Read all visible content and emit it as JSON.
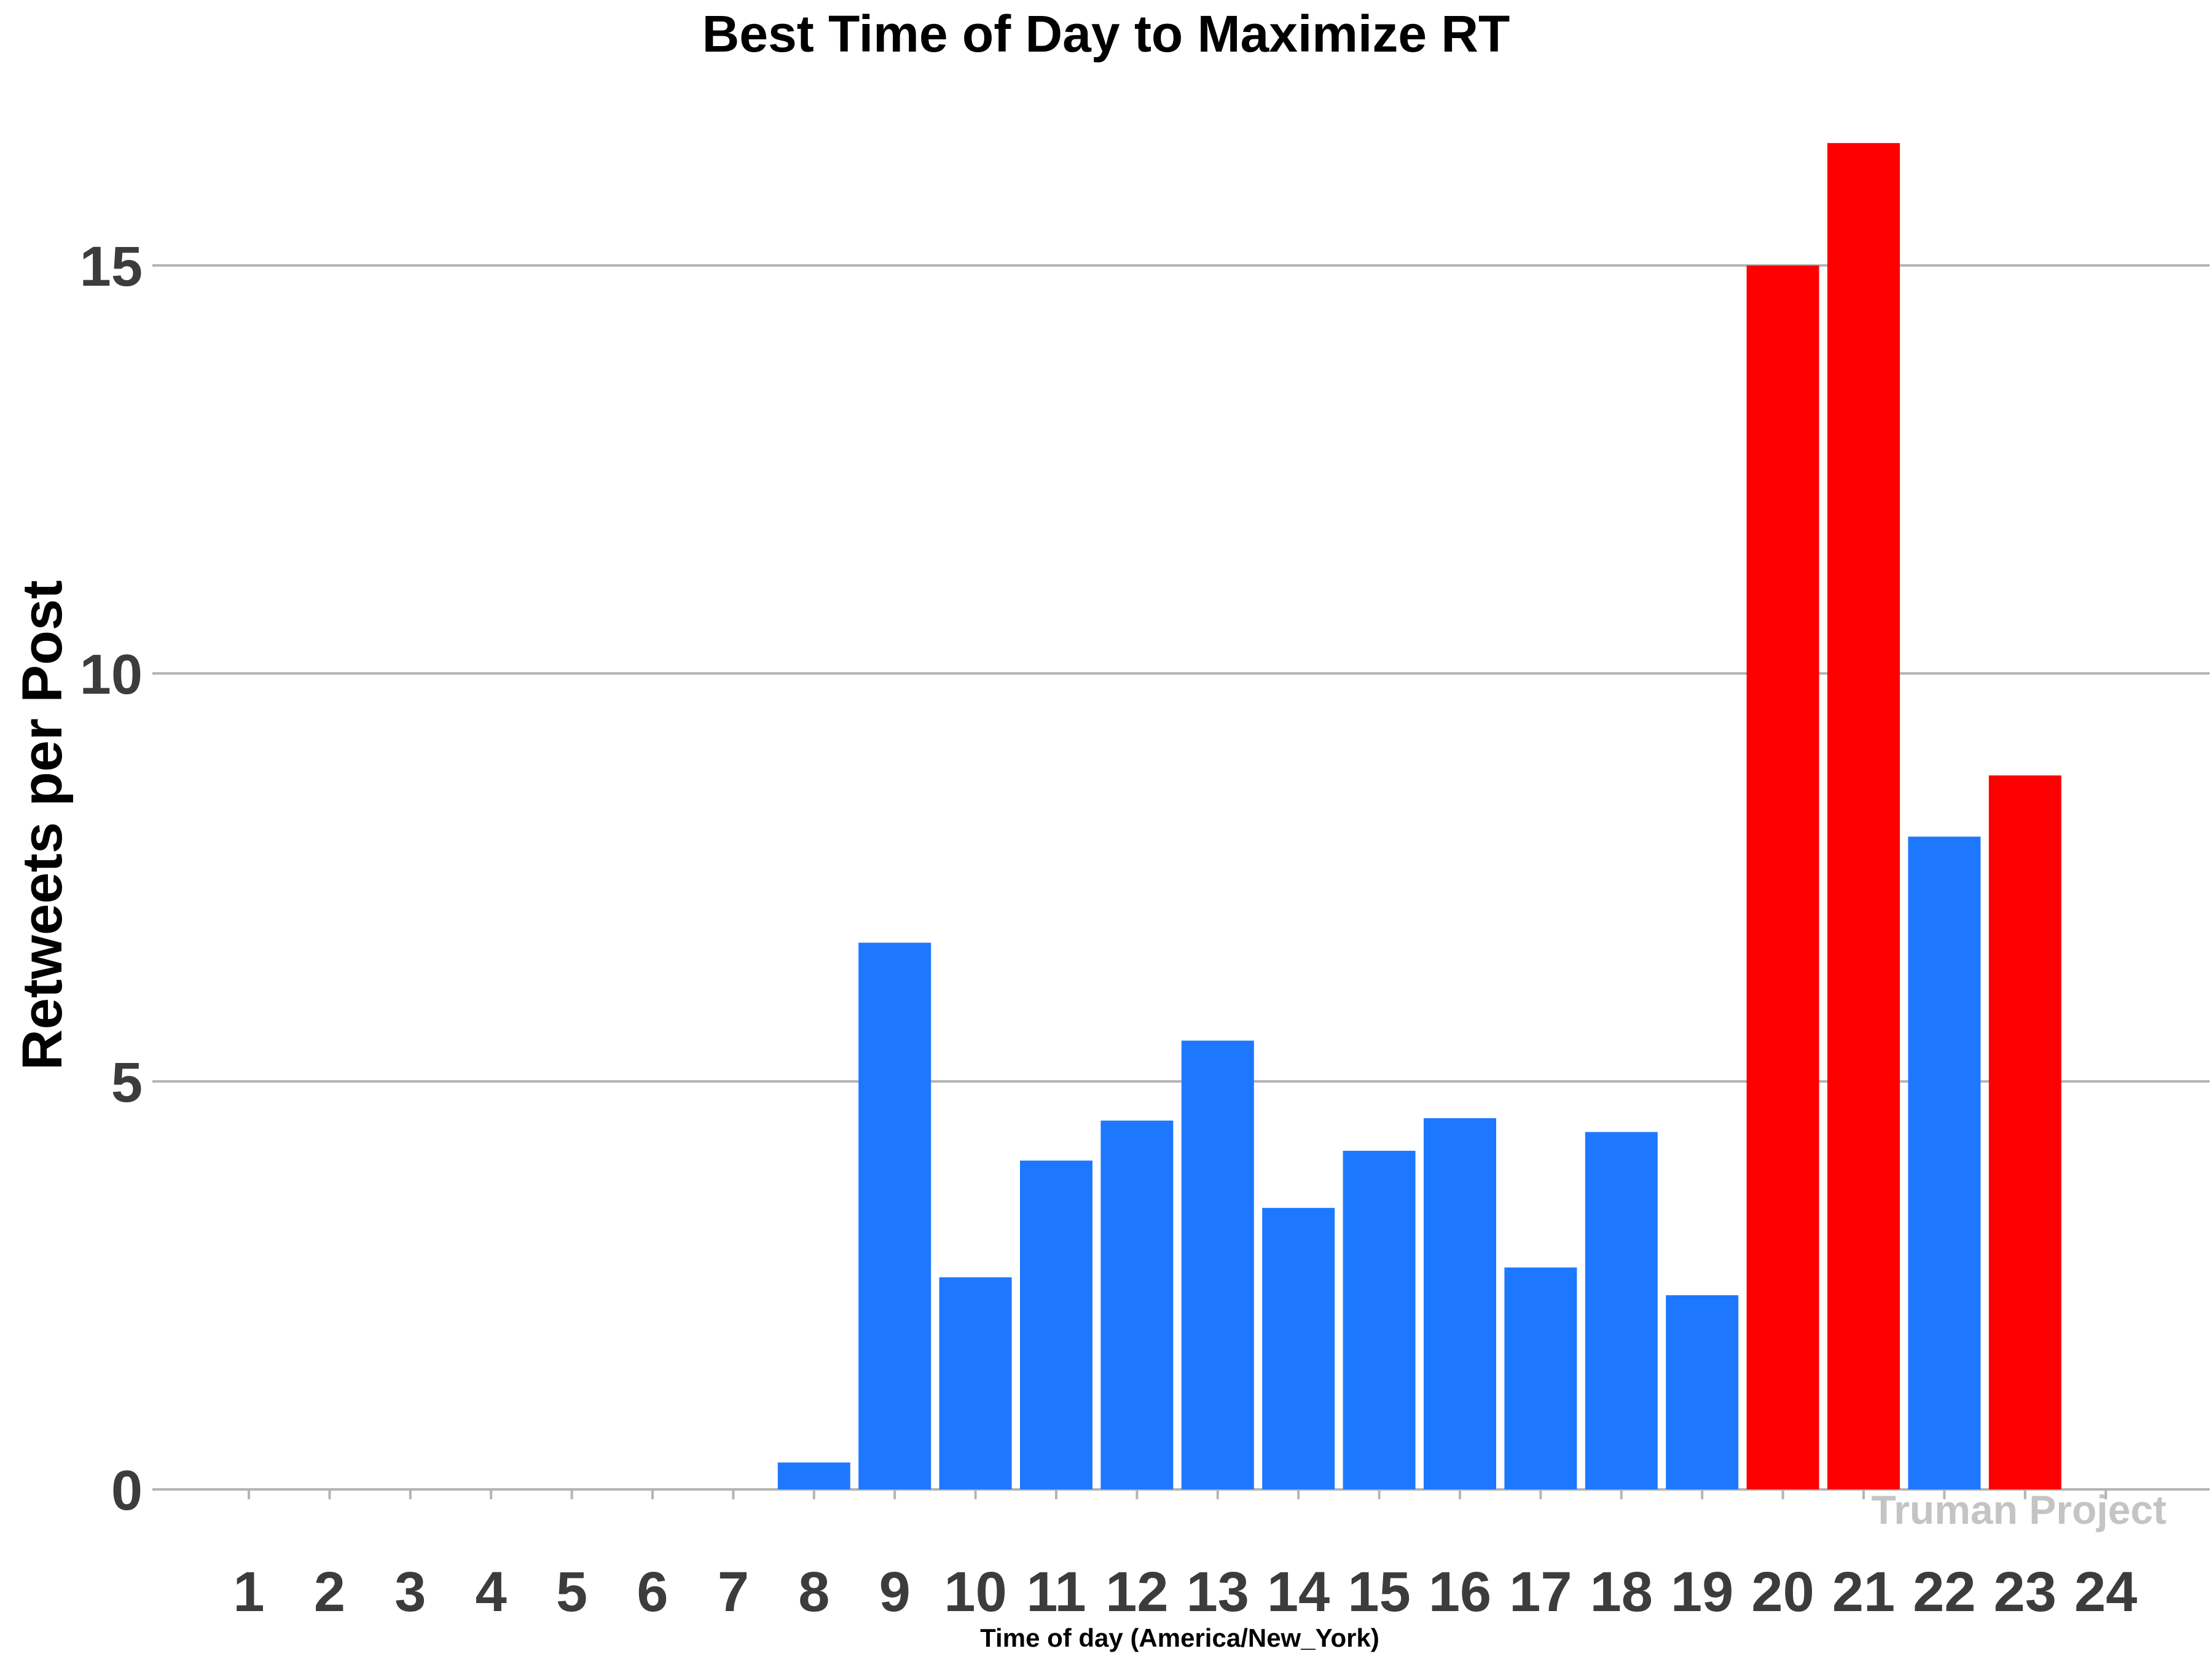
{
  "chart_data": {
    "type": "bar",
    "title": "Best Time of Day to Maximize RT",
    "xlabel": "Time of day (America/New_York)",
    "ylabel": "Retweets per Post",
    "categories": [
      "1",
      "2",
      "3",
      "4",
      "5",
      "6",
      "7",
      "8",
      "9",
      "10",
      "11",
      "12",
      "13",
      "14",
      "15",
      "16",
      "17",
      "18",
      "19",
      "20",
      "21",
      "22",
      "23",
      "24"
    ],
    "values": [
      0,
      0,
      0,
      0,
      0,
      0,
      0,
      0.33,
      6.7,
      2.6,
      4.03,
      4.52,
      5.5,
      3.45,
      4.15,
      4.55,
      2.72,
      4.38,
      2.38,
      15.0,
      16.5,
      8.0,
      8.75,
      0
    ],
    "highlight": [
      false,
      false,
      false,
      false,
      false,
      false,
      false,
      false,
      false,
      false,
      false,
      false,
      false,
      false,
      false,
      false,
      false,
      false,
      false,
      true,
      true,
      false,
      true,
      false
    ],
    "yticks": [
      0,
      5,
      10,
      15
    ],
    "ylim": [
      0,
      16.5
    ],
    "grid": true,
    "colors": {
      "normal": "#1e78ff",
      "highlight": "#ff0000"
    },
    "watermark": "Truman Project"
  }
}
